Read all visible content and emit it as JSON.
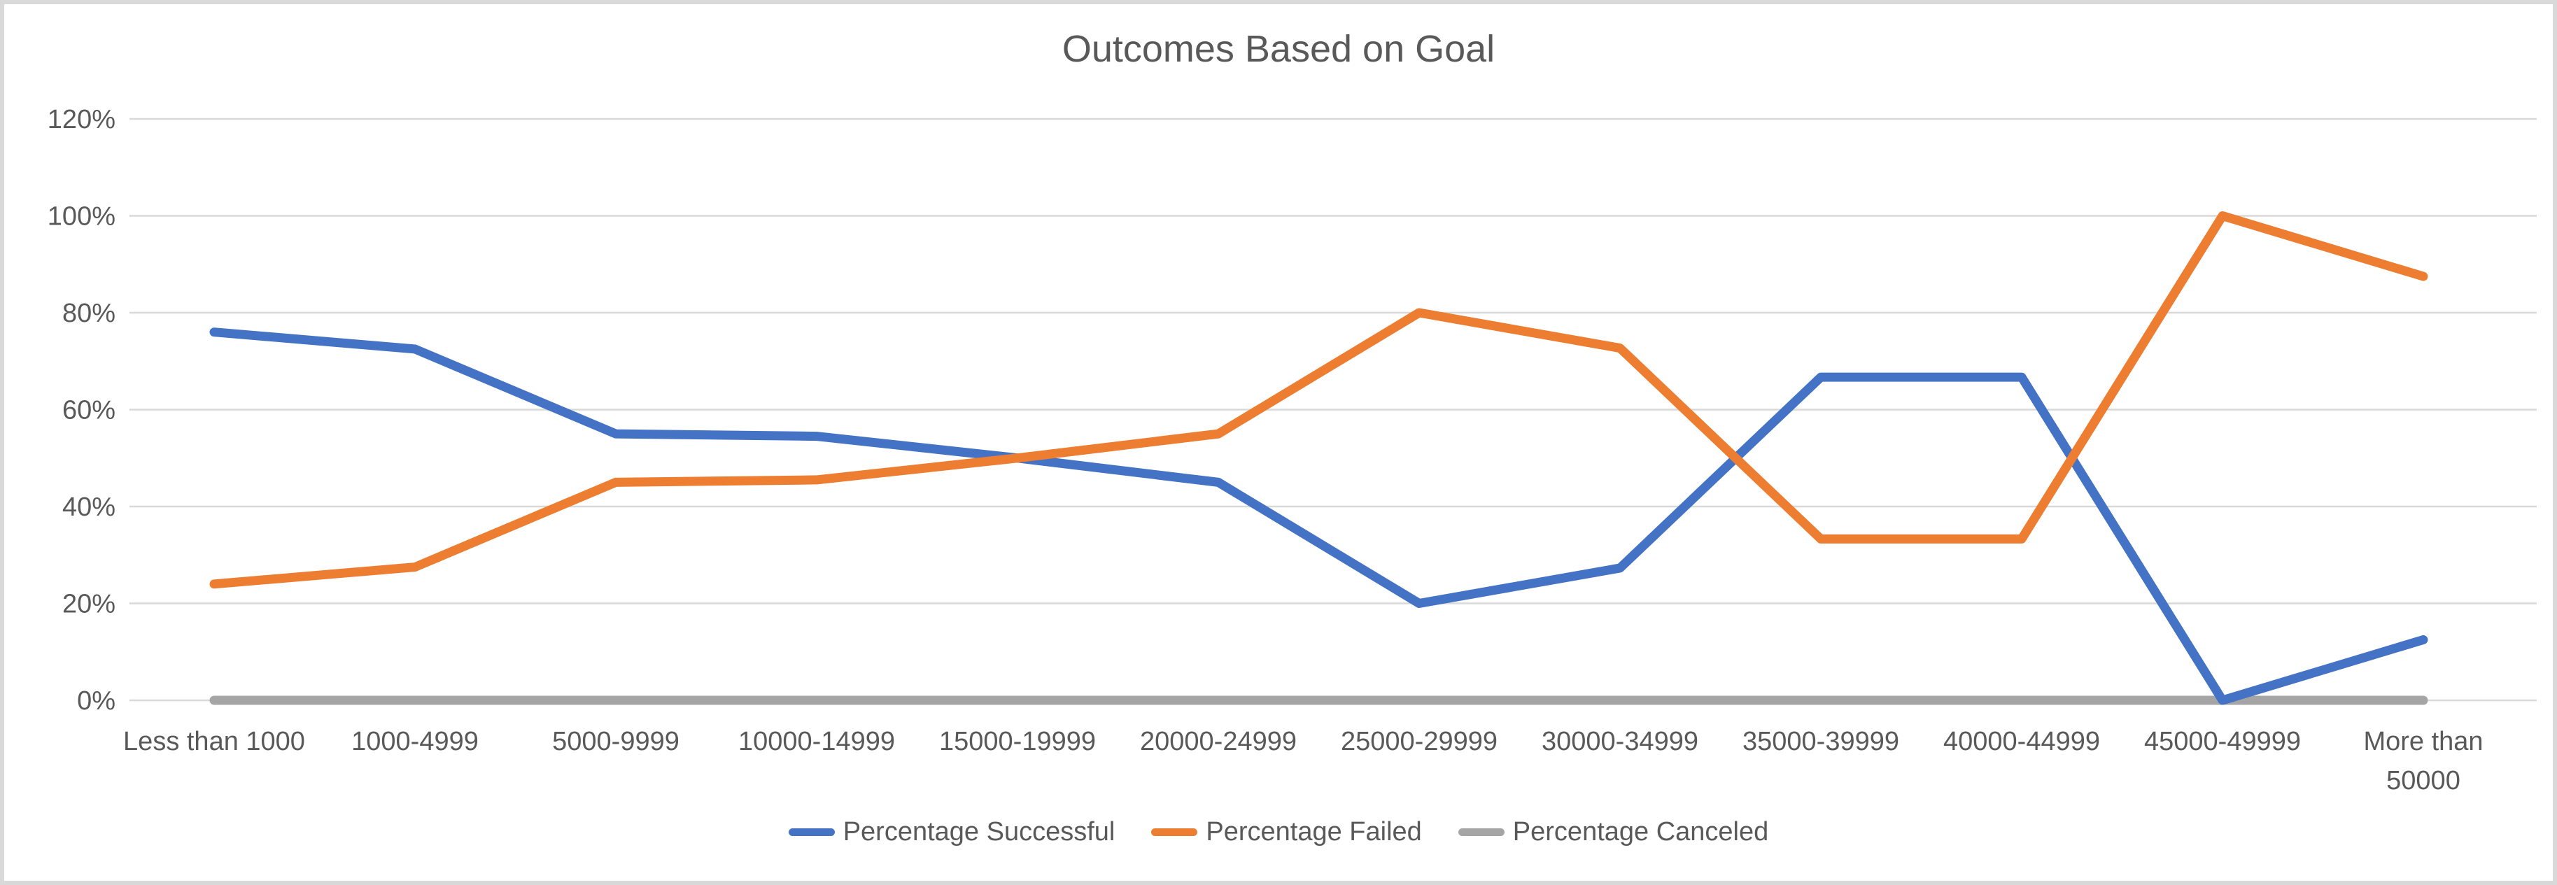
{
  "chart_data": {
    "type": "line",
    "title": "Outcomes Based on Goal",
    "categories": [
      "Less than 1000",
      "1000-4999",
      "5000-9999",
      "10000-14999",
      "15000-19999",
      "20000-24999",
      "25000-29999",
      "30000-34999",
      "35000-39999",
      "40000-44999",
      "45000-49999",
      "More than 50000"
    ],
    "series": [
      {
        "name": "Percentage Successful",
        "color": "#4472C4",
        "values": [
          76,
          72.5,
          55,
          54.5,
          50,
          45,
          20,
          27.3,
          66.7,
          66.7,
          0,
          12.5
        ]
      },
      {
        "name": "Percentage Failed",
        "color": "#ED7D31",
        "values": [
          24,
          27.5,
          45,
          45.5,
          50,
          55,
          80,
          72.7,
          33.3,
          33.3,
          100,
          87.5
        ]
      },
      {
        "name": "Percentage Canceled",
        "color": "#A5A5A5",
        "values": [
          0,
          0,
          0,
          0,
          0,
          0,
          0,
          0,
          0,
          0,
          0,
          0
        ]
      }
    ],
    "y_axis": {
      "tick_labels": [
        "0%",
        "20%",
        "40%",
        "60%",
        "80%",
        "100%",
        "120%"
      ],
      "min": 0,
      "max": 120,
      "step": 20
    },
    "grid": "horizontal",
    "legend_position": "bottom",
    "colors": {
      "gridline": "#D9D9D9",
      "text": "#595959",
      "border": "#D9D9D9",
      "background": "#FFFFFF"
    }
  }
}
